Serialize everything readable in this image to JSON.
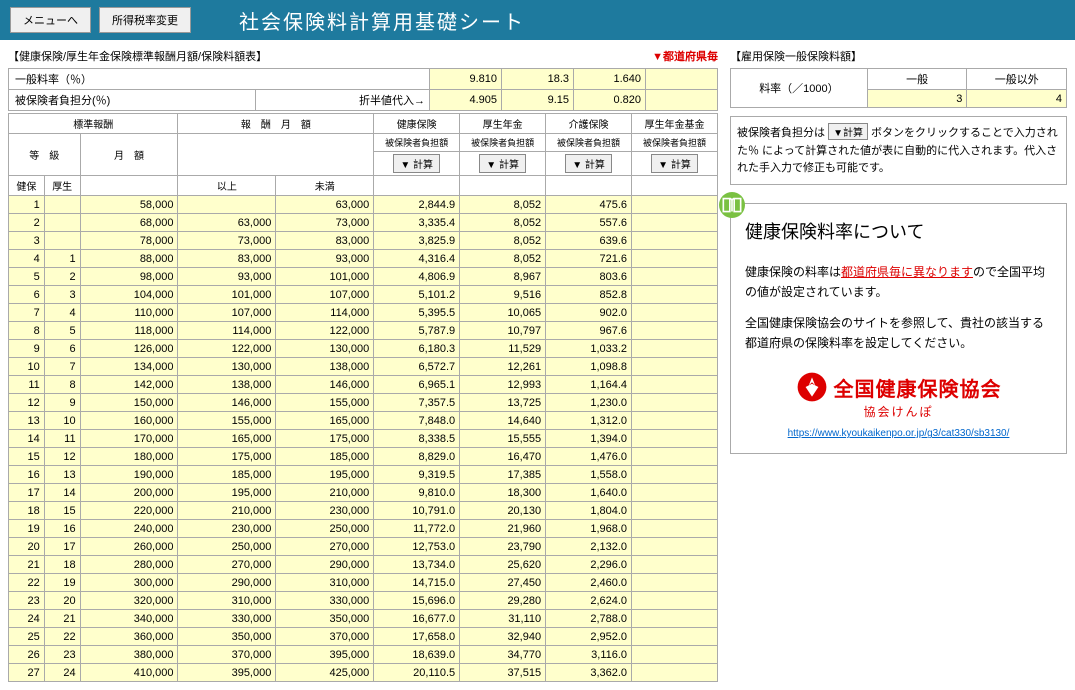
{
  "topbar": {
    "menu_btn": "メニューへ",
    "tax_btn": "所得税率変更",
    "title": "社会保険料計算用基礎シート"
  },
  "left": {
    "section_label": "【健康保険/厚生年金保険標準報酬月額/保険料額表】",
    "pref_label": "▼都道府県毎",
    "general_rate_label": "一般料率（％）",
    "burden_rate_label": "被保険者負担分(％)",
    "half_label": "折半値代入→",
    "general_rates": [
      "9.810",
      "18.3",
      "1.640",
      ""
    ],
    "burden_rates": [
      "4.905",
      "9.15",
      "0.820",
      ""
    ],
    "headers": {
      "std_rem": "標準報酬",
      "rem_monthly": "報　酬　月　額",
      "health_ins": "健康保険",
      "pension": "厚生年金",
      "care_ins": "介護保険",
      "pension_fund": "厚生年金基金",
      "grade": "等　級",
      "monthly": "月　額",
      "over": "以上",
      "under": "未満",
      "health_col": "健保",
      "pension_col": "厚生",
      "burden_sub": "被保険者負担額",
      "calc_btn": "▼ 計算"
    },
    "rows": [
      {
        "k": "1",
        "h": "",
        "m": "58,000",
        "lo": "",
        "hi": "63,000",
        "a": "2,844.9",
        "b": "8,052",
        "c": "475.6",
        "d": ""
      },
      {
        "k": "2",
        "h": "",
        "m": "68,000",
        "lo": "63,000",
        "hi": "73,000",
        "a": "3,335.4",
        "b": "8,052",
        "c": "557.6",
        "d": ""
      },
      {
        "k": "3",
        "h": "",
        "m": "78,000",
        "lo": "73,000",
        "hi": "83,000",
        "a": "3,825.9",
        "b": "8,052",
        "c": "639.6",
        "d": ""
      },
      {
        "k": "4",
        "h": "1",
        "m": "88,000",
        "lo": "83,000",
        "hi": "93,000",
        "a": "4,316.4",
        "b": "8,052",
        "c": "721.6",
        "d": ""
      },
      {
        "k": "5",
        "h": "2",
        "m": "98,000",
        "lo": "93,000",
        "hi": "101,000",
        "a": "4,806.9",
        "b": "8,967",
        "c": "803.6",
        "d": ""
      },
      {
        "k": "6",
        "h": "3",
        "m": "104,000",
        "lo": "101,000",
        "hi": "107,000",
        "a": "5,101.2",
        "b": "9,516",
        "c": "852.8",
        "d": ""
      },
      {
        "k": "7",
        "h": "4",
        "m": "110,000",
        "lo": "107,000",
        "hi": "114,000",
        "a": "5,395.5",
        "b": "10,065",
        "c": "902.0",
        "d": ""
      },
      {
        "k": "8",
        "h": "5",
        "m": "118,000",
        "lo": "114,000",
        "hi": "122,000",
        "a": "5,787.9",
        "b": "10,797",
        "c": "967.6",
        "d": ""
      },
      {
        "k": "9",
        "h": "6",
        "m": "126,000",
        "lo": "122,000",
        "hi": "130,000",
        "a": "6,180.3",
        "b": "11,529",
        "c": "1,033.2",
        "d": ""
      },
      {
        "k": "10",
        "h": "7",
        "m": "134,000",
        "lo": "130,000",
        "hi": "138,000",
        "a": "6,572.7",
        "b": "12,261",
        "c": "1,098.8",
        "d": ""
      },
      {
        "k": "11",
        "h": "8",
        "m": "142,000",
        "lo": "138,000",
        "hi": "146,000",
        "a": "6,965.1",
        "b": "12,993",
        "c": "1,164.4",
        "d": ""
      },
      {
        "k": "12",
        "h": "9",
        "m": "150,000",
        "lo": "146,000",
        "hi": "155,000",
        "a": "7,357.5",
        "b": "13,725",
        "c": "1,230.0",
        "d": ""
      },
      {
        "k": "13",
        "h": "10",
        "m": "160,000",
        "lo": "155,000",
        "hi": "165,000",
        "a": "7,848.0",
        "b": "14,640",
        "c": "1,312.0",
        "d": ""
      },
      {
        "k": "14",
        "h": "11",
        "m": "170,000",
        "lo": "165,000",
        "hi": "175,000",
        "a": "8,338.5",
        "b": "15,555",
        "c": "1,394.0",
        "d": ""
      },
      {
        "k": "15",
        "h": "12",
        "m": "180,000",
        "lo": "175,000",
        "hi": "185,000",
        "a": "8,829.0",
        "b": "16,470",
        "c": "1,476.0",
        "d": ""
      },
      {
        "k": "16",
        "h": "13",
        "m": "190,000",
        "lo": "185,000",
        "hi": "195,000",
        "a": "9,319.5",
        "b": "17,385",
        "c": "1,558.0",
        "d": ""
      },
      {
        "k": "17",
        "h": "14",
        "m": "200,000",
        "lo": "195,000",
        "hi": "210,000",
        "a": "9,810.0",
        "b": "18,300",
        "c": "1,640.0",
        "d": ""
      },
      {
        "k": "18",
        "h": "15",
        "m": "220,000",
        "lo": "210,000",
        "hi": "230,000",
        "a": "10,791.0",
        "b": "20,130",
        "c": "1,804.0",
        "d": ""
      },
      {
        "k": "19",
        "h": "16",
        "m": "240,000",
        "lo": "230,000",
        "hi": "250,000",
        "a": "11,772.0",
        "b": "21,960",
        "c": "1,968.0",
        "d": ""
      },
      {
        "k": "20",
        "h": "17",
        "m": "260,000",
        "lo": "250,000",
        "hi": "270,000",
        "a": "12,753.0",
        "b": "23,790",
        "c": "2,132.0",
        "d": ""
      },
      {
        "k": "21",
        "h": "18",
        "m": "280,000",
        "lo": "270,000",
        "hi": "290,000",
        "a": "13,734.0",
        "b": "25,620",
        "c": "2,296.0",
        "d": ""
      },
      {
        "k": "22",
        "h": "19",
        "m": "300,000",
        "lo": "290,000",
        "hi": "310,000",
        "a": "14,715.0",
        "b": "27,450",
        "c": "2,460.0",
        "d": ""
      },
      {
        "k": "23",
        "h": "20",
        "m": "320,000",
        "lo": "310,000",
        "hi": "330,000",
        "a": "15,696.0",
        "b": "29,280",
        "c": "2,624.0",
        "d": ""
      },
      {
        "k": "24",
        "h": "21",
        "m": "340,000",
        "lo": "330,000",
        "hi": "350,000",
        "a": "16,677.0",
        "b": "31,110",
        "c": "2,788.0",
        "d": ""
      },
      {
        "k": "25",
        "h": "22",
        "m": "360,000",
        "lo": "350,000",
        "hi": "370,000",
        "a": "17,658.0",
        "b": "32,940",
        "c": "2,952.0",
        "d": ""
      },
      {
        "k": "26",
        "h": "23",
        "m": "380,000",
        "lo": "370,000",
        "hi": "395,000",
        "a": "18,639.0",
        "b": "34,770",
        "c": "3,116.0",
        "d": ""
      },
      {
        "k": "27",
        "h": "24",
        "m": "410,000",
        "lo": "395,000",
        "hi": "425,000",
        "a": "20,110.5",
        "b": "37,515",
        "c": "3,362.0",
        "d": ""
      }
    ]
  },
  "right": {
    "emp_label": "【雇用保険一般保険料額】",
    "rate_per_1000": "料率（／1000）",
    "general": "一般",
    "non_general": "一般以外",
    "general_val": "3",
    "non_general_val": "4",
    "note_pre": "被保険者負担分は",
    "note_btn": "▼計算",
    "note_post": "ボタンをクリックすることで入力された％ によって計算された値が表に自動的に代入されます。代入された手入力で修正も可能です。",
    "info_title": "健康保険料率について",
    "info_body_1": "健康保険の料率は",
    "info_link_red": "都道府県毎に異なります",
    "info_body_2": "ので全国平均の値が設定されています。",
    "info_body_3": "全国健康保険協会のサイトを参照して、貴社の該当する都道府県の保険料率を設定してください。",
    "kenpo_main": "全国健康保険協会",
    "kenpo_sub": "協会けんぽ",
    "kenpo_url": "https://www.kyoukaikenpo.or.jp/g3/cat330/sb3130/"
  }
}
